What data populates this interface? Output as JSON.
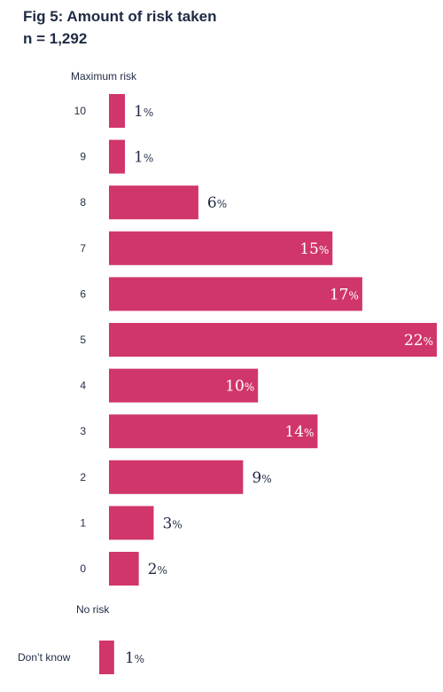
{
  "chart_data": {
    "type": "bar",
    "orientation": "horizontal",
    "title": "Fig 5: Amount of risk taken",
    "subtitle": "n = 1,292",
    "top_axis_label": "Maximum risk",
    "bottom_axis_label": "No risk",
    "categories": [
      "10",
      "9",
      "8",
      "7",
      "6",
      "5",
      "4",
      "3",
      "2",
      "1",
      "0"
    ],
    "values": [
      1,
      1,
      6,
      15,
      17,
      22,
      10,
      14,
      9,
      3,
      2
    ],
    "unit": "%",
    "extra_category": {
      "label": "Don’t know",
      "value": 1
    },
    "xlim": [
      0,
      22
    ],
    "grid": false,
    "legend": "none",
    "colors": {
      "bar": "#d0366b",
      "text": "#1f2a44",
      "label_inside": "#ffffff"
    }
  }
}
